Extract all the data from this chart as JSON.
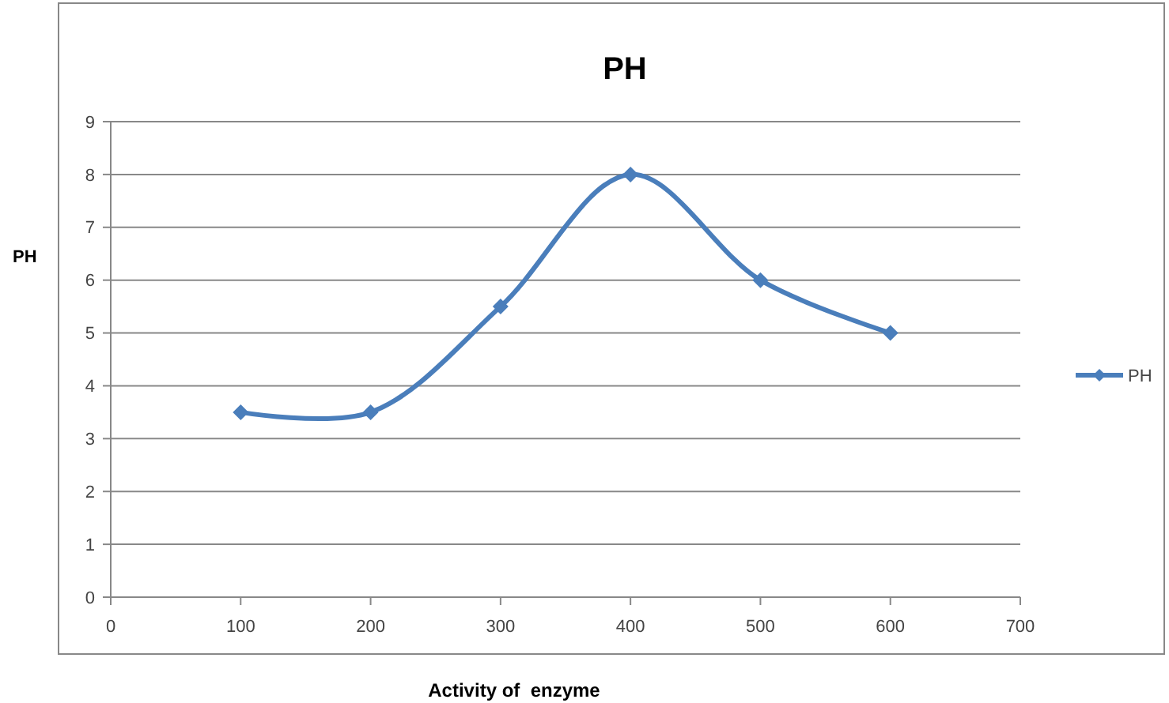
{
  "chart_data": {
    "type": "line",
    "title": "PH",
    "xlabel": "Activity of  enzyme",
    "ylabel": "PH",
    "x": [
      100,
      200,
      300,
      400,
      500,
      600
    ],
    "series": [
      {
        "name": "PH",
        "color": "#4a7ebb",
        "values": [
          3.5,
          3.5,
          5.5,
          8,
          6,
          5
        ]
      }
    ],
    "xlim": [
      0,
      700
    ],
    "xticks": [
      0,
      100,
      200,
      300,
      400,
      500,
      600,
      700
    ],
    "ylim": [
      0,
      9
    ],
    "yticks": [
      0,
      1,
      2,
      3,
      4,
      5,
      6,
      7,
      8,
      9
    ],
    "grid": "y",
    "legend": "right",
    "marker": "diamond",
    "line_style": "solid"
  }
}
